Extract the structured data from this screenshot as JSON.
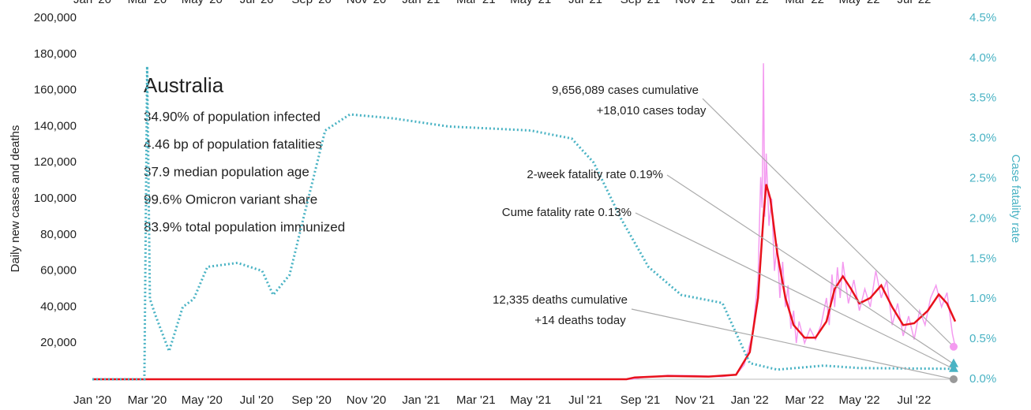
{
  "chart_data": {
    "type": "line",
    "title": "Australia",
    "info_lines": [
      "34.90% of population infected",
      "4.46 bp of population fatalities",
      "37.9 median population age",
      "99.6% Omicron variant share",
      "83.9% total population immunized"
    ],
    "ylabel": "Daily new cases and deaths",
    "y2label": "Case fatality rate",
    "xlim": [
      0,
      31.5
    ],
    "xticks": [
      {
        "value": 0,
        "label": "Jan '20"
      },
      {
        "value": 2,
        "label": "Mar '20"
      },
      {
        "value": 4,
        "label": "May '20"
      },
      {
        "value": 6,
        "label": "Jul '20"
      },
      {
        "value": 8,
        "label": "Sep '20"
      },
      {
        "value": 10,
        "label": "Nov '20"
      },
      {
        "value": 12,
        "label": "Jan '21"
      },
      {
        "value": 14,
        "label": "Mar '21"
      },
      {
        "value": 16,
        "label": "May '21"
      },
      {
        "value": 18,
        "label": "Jul '21"
      },
      {
        "value": 20,
        "label": "Sep '21"
      },
      {
        "value": 22,
        "label": "Nov '21"
      },
      {
        "value": 24,
        "label": "Jan '22"
      },
      {
        "value": 26,
        "label": "Mar '22"
      },
      {
        "value": 28,
        "label": "May '22"
      },
      {
        "value": 30,
        "label": "Jul '22"
      }
    ],
    "ylim": [
      0,
      200000
    ],
    "yticks": [
      {
        "value": 20000,
        "label": "20,000"
      },
      {
        "value": 40000,
        "label": "40,000"
      },
      {
        "value": 60000,
        "label": "60,000"
      },
      {
        "value": 80000,
        "label": "80,000"
      },
      {
        "value": 100000,
        "label": "100,000"
      },
      {
        "value": 120000,
        "label": "120,000"
      },
      {
        "value": 140000,
        "label": "140,000"
      },
      {
        "value": 160000,
        "label": "160,000"
      },
      {
        "value": 180000,
        "label": "180,000"
      },
      {
        "value": 200000,
        "label": "200,000"
      }
    ],
    "y2lim": [
      0,
      4.5
    ],
    "y2ticks": [
      {
        "value": 0,
        "label": "0.0%"
      },
      {
        "value": 0.5,
        "label": "0.5%"
      },
      {
        "value": 1,
        "label": "1.0%"
      },
      {
        "value": 1.5,
        "label": "1.5%"
      },
      {
        "value": 2,
        "label": "2.0%"
      },
      {
        "value": 2.5,
        "label": "2.5%"
      },
      {
        "value": 3,
        "label": "3.0%"
      },
      {
        "value": 3.5,
        "label": "3.5%"
      },
      {
        "value": 4,
        "label": "4.0%"
      },
      {
        "value": 4.5,
        "label": "4.5%"
      }
    ],
    "series": [
      {
        "color": "#f49af0",
        "width": 1.5,
        "dash": false,
        "axis": "y",
        "x": [
          0,
          19.7,
          20,
          21,
          22,
          23,
          23.5,
          23.8,
          24.1,
          24.3,
          24.4,
          24.45,
          24.5,
          24.55,
          24.6,
          24.7,
          24.8,
          24.9,
          25,
          25.1,
          25.2,
          25.3,
          25.4,
          25.5,
          25.6,
          25.7,
          25.8,
          26,
          26.2,
          26.4,
          26.6,
          26.8,
          26.9,
          27,
          27.1,
          27.2,
          27.3,
          27.4,
          27.6,
          27.8,
          28,
          28.2,
          28.4,
          28.6,
          28.8,
          29,
          29.2,
          29.4,
          29.6,
          29.8,
          30,
          30.2,
          30.4,
          30.6,
          30.8,
          31,
          31.2,
          31.4,
          31.5
        ],
        "values": [
          0,
          0,
          800,
          2200,
          2000,
          1400,
          2500,
          8000,
          25000,
          55000,
          112000,
          95000,
          175000,
          90000,
          125000,
          85000,
          100000,
          60000,
          75000,
          45000,
          65000,
          40000,
          52000,
          28000,
          38000,
          20000,
          32000,
          20000,
          28000,
          22000,
          30000,
          45000,
          30000,
          58000,
          40000,
          62000,
          45000,
          65000,
          42000,
          55000,
          38000,
          50000,
          40000,
          60000,
          45000,
          55000,
          30000,
          42000,
          24000,
          35000,
          22000,
          38000,
          30000,
          45000,
          52000,
          40000,
          48000,
          25000,
          18010
        ]
      },
      {
        "color": "#e8111b",
        "width": 2.5,
        "dash": false,
        "axis": "y",
        "x": [
          0,
          19.5,
          19.8,
          21,
          22.5,
          23.5,
          24,
          24.3,
          24.5,
          24.6,
          24.75,
          25,
          25.3,
          25.6,
          26,
          26.4,
          26.8,
          27.1,
          27.4,
          27.7,
          28,
          28.4,
          28.8,
          29.2,
          29.6,
          30,
          30.5,
          30.9,
          31.2,
          31.5
        ],
        "values": [
          0,
          0,
          1000,
          1800,
          1500,
          2500,
          15000,
          45000,
          90000,
          108000,
          100000,
          70000,
          45000,
          30000,
          23000,
          23000,
          32000,
          50000,
          57000,
          50000,
          42000,
          45000,
          52000,
          40000,
          30000,
          31000,
          38000,
          47000,
          42000,
          32000
        ]
      },
      {
        "color": "#4ab3c4",
        "width": 3,
        "dash": true,
        "axis": "y2",
        "x": [
          0,
          1.9,
          2,
          2.1,
          2.3,
          2.8,
          3.3,
          3.7,
          4.2,
          5.3,
          6.2,
          6.6,
          7.2,
          7.7,
          8.5,
          9.4,
          11,
          13,
          16,
          17.5,
          18.3,
          19.3,
          20.3,
          21.5,
          23,
          23.6,
          24,
          25,
          26.7,
          28,
          31.5
        ],
        "values": [
          0,
          0,
          3.9,
          1,
          0.8,
          0.35,
          0.9,
          1,
          1.4,
          1.45,
          1.35,
          1.05,
          1.3,
          2,
          3.1,
          3.3,
          3.25,
          3.15,
          3.1,
          3,
          2.7,
          2,
          1.4,
          1.05,
          0.95,
          0.5,
          0.2,
          0.12,
          0.17,
          0.14,
          0.13
        ]
      }
    ],
    "end_markers": [
      {
        "label": "9,656,089 cases cumulative",
        "label2": "+18,010 cases today",
        "value": 18010,
        "axis": "y",
        "shape": "circle",
        "color": "#f49af0"
      },
      {
        "label": "2-week fatality rate 0.19%",
        "value": 0.19,
        "axis": "y2",
        "shape": "triangle",
        "color": "#4ab3c4"
      },
      {
        "label": "Cume fatality rate 0.13%",
        "value": 0.13,
        "axis": "y2",
        "shape": "triangle",
        "color": "#4ab3c4"
      },
      {
        "label": "12,335 deaths cumulative",
        "label2": "+14 deaths today",
        "value": 14,
        "axis": "y",
        "shape": "circle",
        "color": "#999999"
      }
    ]
  }
}
